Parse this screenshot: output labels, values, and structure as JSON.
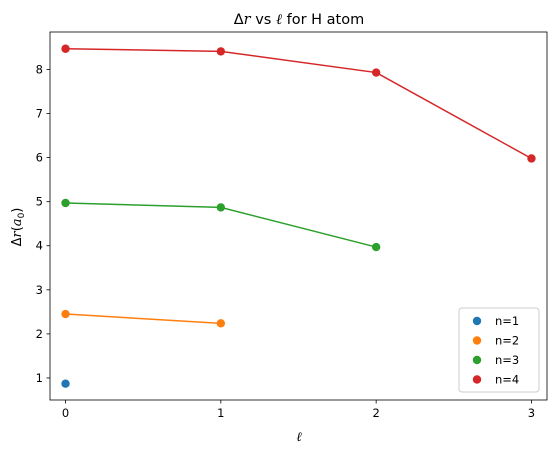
{
  "chart_data": {
    "type": "scatter",
    "title_parts": [
      "Δ",
      "r",
      " vs ",
      "ℓ",
      " for H atom"
    ],
    "xlabel": "ℓ",
    "ylabel_parts": [
      "Δ",
      "r",
      "(",
      "a",
      "0",
      ")"
    ],
    "xlim": [
      -0.1,
      3.1
    ],
    "ylim": [
      0.5,
      8.85
    ],
    "xticks": [
      0,
      1,
      2,
      3
    ],
    "yticks": [
      1,
      2,
      3,
      4,
      5,
      6,
      7,
      8
    ],
    "grid": false,
    "legend_position": "lower right",
    "series": [
      {
        "name": "n=1",
        "color": "#1f77b4",
        "x": [
          0
        ],
        "y": [
          0.87
        ]
      },
      {
        "name": "n=2",
        "color": "#ff7f0e",
        "x": [
          0,
          1
        ],
        "y": [
          2.45,
          2.24
        ]
      },
      {
        "name": "n=3",
        "color": "#2ca02c",
        "x": [
          0,
          1,
          2
        ],
        "y": [
          4.97,
          4.87,
          3.97
        ]
      },
      {
        "name": "n=4",
        "color": "#d62728",
        "x": [
          0,
          1,
          2,
          3
        ],
        "y": [
          8.47,
          8.41,
          7.93,
          5.98
        ]
      }
    ]
  }
}
